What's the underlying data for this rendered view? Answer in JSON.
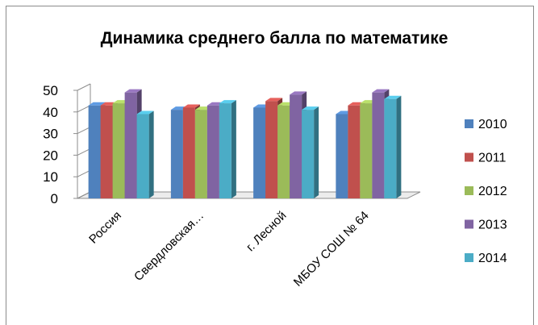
{
  "chart_data": {
    "type": "bar",
    "title": "Динамика среднего балла по математике",
    "categories": [
      "Россия",
      "Свердловская…",
      "г. Лесной",
      "МБОУ СОШ № 64"
    ],
    "series": [
      {
        "name": "2010",
        "color": "#4f81bd",
        "values": [
          43,
          41,
          42,
          39
        ]
      },
      {
        "name": "2011",
        "color": "#c0504d",
        "values": [
          43,
          42,
          45,
          43
        ]
      },
      {
        "name": "2012",
        "color": "#9bbb59",
        "values": [
          44,
          41,
          43,
          44
        ]
      },
      {
        "name": "2013",
        "color": "#8064a2",
        "values": [
          49,
          43,
          48,
          49
        ]
      },
      {
        "name": "2014",
        "color": "#4bacc6",
        "values": [
          39,
          44,
          41,
          46
        ]
      }
    ],
    "yticks": [
      0,
      10,
      20,
      30,
      40,
      50
    ],
    "ylim": [
      0,
      50
    ],
    "grid": false,
    "legend": "right",
    "style": "3d-clustered-column"
  }
}
